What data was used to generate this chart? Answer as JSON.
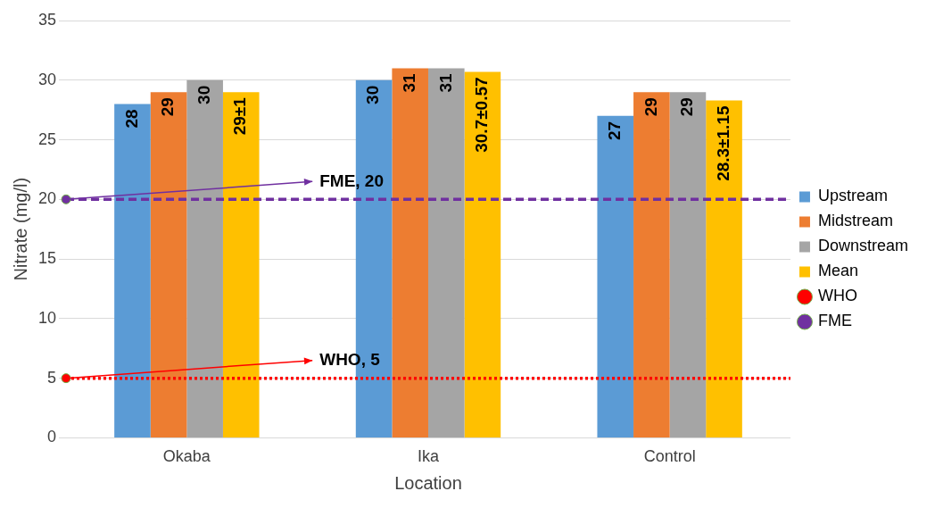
{
  "chart_data": {
    "type": "bar",
    "xlabel": "Location",
    "ylabel": "Nitrate (mg/l)",
    "categories": [
      "Okaba",
      "Ika",
      "Control"
    ],
    "series": [
      {
        "name": "Upstream",
        "color": "#5b9bd5",
        "values": [
          28,
          30,
          27
        ]
      },
      {
        "name": "Midstream",
        "color": "#ed7d31",
        "values": [
          29,
          31,
          29
        ]
      },
      {
        "name": "Downstream",
        "color": "#a5a5a5",
        "values": [
          30,
          31,
          29
        ]
      },
      {
        "name": "Mean",
        "color": "#ffc000",
        "values": [
          29,
          30.7,
          28.3
        ],
        "value_labels": [
          "29±1",
          "30.7±0.57",
          "28.3±1.15"
        ]
      }
    ],
    "ref_lines": [
      {
        "axis": "y",
        "value": 5,
        "label": "WHO",
        "color": "#ff0000",
        "line_style": "dotted"
      },
      {
        "axis": "y",
        "value": 20,
        "label": "FME",
        "color": "#7030a0",
        "line_style": "dashed"
      }
    ],
    "annotations": [
      {
        "text": "WHO, 5",
        "y": 5
      },
      {
        "text": "FME, 20",
        "y": 20
      }
    ],
    "ylim": [
      0,
      35
    ],
    "yticks": [
      0,
      5,
      10,
      15,
      20,
      25,
      30,
      35
    ],
    "grid": "y",
    "legend": "right",
    "data_labels": true
  }
}
